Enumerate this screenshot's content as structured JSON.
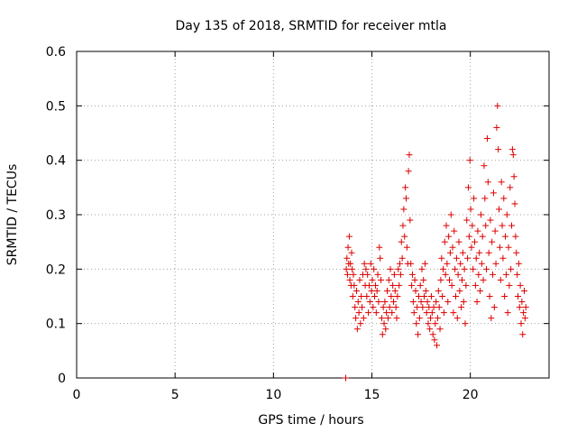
{
  "chart_data": {
    "type": "scatter",
    "title": "Day 135 of 2018, SRMTID for receiver mtla",
    "xlabel": "GPS time / hours",
    "ylabel": "SRMTID / TECUs",
    "xlim": [
      0,
      24
    ],
    "ylim": [
      0,
      0.6
    ],
    "xticks": [
      0,
      5,
      10,
      15,
      20
    ],
    "yticks": [
      0,
      0.1,
      0.2,
      0.3,
      0.4,
      0.5,
      0.6
    ],
    "xtick_labels": [
      "0",
      "5",
      "10",
      "15",
      "20"
    ],
    "ytick_labels": [
      "0",
      "0.1",
      "0.2",
      "0.3",
      "0.4",
      "0.5",
      "0.6"
    ],
    "grid": true,
    "marker": "+",
    "color": "#dd0000",
    "series": [
      {
        "name": "mtla",
        "points": [
          [
            13.67,
            0.0
          ],
          [
            13.67,
            0.0
          ],
          [
            13.7,
            0.2
          ],
          [
            13.73,
            0.22
          ],
          [
            13.76,
            0.19
          ],
          [
            13.79,
            0.24
          ],
          [
            13.82,
            0.21
          ],
          [
            13.85,
            0.26
          ],
          [
            13.88,
            0.18
          ],
          [
            13.91,
            0.21
          ],
          [
            13.94,
            0.17
          ],
          [
            13.97,
            0.23
          ],
          [
            14.0,
            0.2
          ],
          [
            14.03,
            0.15
          ],
          [
            14.06,
            0.19
          ],
          [
            14.1,
            0.17
          ],
          [
            14.14,
            0.13
          ],
          [
            14.18,
            0.11
          ],
          [
            14.22,
            0.16
          ],
          [
            14.26,
            0.09
          ],
          [
            14.3,
            0.14
          ],
          [
            14.34,
            0.12
          ],
          [
            14.38,
            0.18
          ],
          [
            14.42,
            0.1
          ],
          [
            14.46,
            0.15
          ],
          [
            14.5,
            0.13
          ],
          [
            14.54,
            0.19
          ],
          [
            14.58,
            0.11
          ],
          [
            14.62,
            0.21
          ],
          [
            14.66,
            0.17
          ],
          [
            14.7,
            0.2
          ],
          [
            14.74,
            0.15
          ],
          [
            14.78,
            0.19
          ],
          [
            14.82,
            0.12
          ],
          [
            14.86,
            0.17
          ],
          [
            14.9,
            0.14
          ],
          [
            14.94,
            0.21
          ],
          [
            14.98,
            0.16
          ],
          [
            15.02,
            0.18
          ],
          [
            15.06,
            0.13
          ],
          [
            15.1,
            0.2
          ],
          [
            15.14,
            0.15
          ],
          [
            15.18,
            0.17
          ],
          [
            15.22,
            0.12
          ],
          [
            15.26,
            0.16
          ],
          [
            15.3,
            0.19
          ],
          [
            15.34,
            0.14
          ],
          [
            15.38,
            0.24
          ],
          [
            15.42,
            0.22
          ],
          [
            15.46,
            0.18
          ],
          [
            15.5,
            0.11
          ],
          [
            15.54,
            0.08
          ],
          [
            15.58,
            0.13
          ],
          [
            15.62,
            0.1
          ],
          [
            15.66,
            0.14
          ],
          [
            15.7,
            0.09
          ],
          [
            15.74,
            0.12
          ],
          [
            15.78,
            0.16
          ],
          [
            15.82,
            0.11
          ],
          [
            15.86,
            0.18
          ],
          [
            15.9,
            0.13
          ],
          [
            15.94,
            0.2
          ],
          [
            15.98,
            0.15
          ],
          [
            16.02,
            0.12
          ],
          [
            16.06,
            0.17
          ],
          [
            16.1,
            0.14
          ],
          [
            16.14,
            0.19
          ],
          [
            16.18,
            0.16
          ],
          [
            16.22,
            0.13
          ],
          [
            16.26,
            0.11
          ],
          [
            16.3,
            0.15
          ],
          [
            16.34,
            0.2
          ],
          [
            16.38,
            0.17
          ],
          [
            16.42,
            0.21
          ],
          [
            16.46,
            0.19
          ],
          [
            16.5,
            0.25
          ],
          [
            16.54,
            0.22
          ],
          [
            16.58,
            0.28
          ],
          [
            16.62,
            0.31
          ],
          [
            16.66,
            0.26
          ],
          [
            16.7,
            0.35
          ],
          [
            16.74,
            0.33
          ],
          [
            16.78,
            0.24
          ],
          [
            16.82,
            0.21
          ],
          [
            16.86,
            0.38
          ],
          [
            16.9,
            0.41
          ],
          [
            16.94,
            0.29
          ],
          [
            16.98,
            0.21
          ],
          [
            17.02,
            0.17
          ],
          [
            17.06,
            0.19
          ],
          [
            17.1,
            0.14
          ],
          [
            17.14,
            0.12
          ],
          [
            17.18,
            0.18
          ],
          [
            17.22,
            0.16
          ],
          [
            17.26,
            0.1
          ],
          [
            17.3,
            0.13
          ],
          [
            17.34,
            0.08
          ],
          [
            17.38,
            0.15
          ],
          [
            17.42,
            0.11
          ],
          [
            17.46,
            0.17
          ],
          [
            17.5,
            0.14
          ],
          [
            17.54,
            0.2
          ],
          [
            17.58,
            0.13
          ],
          [
            17.62,
            0.18
          ],
          [
            17.66,
            0.15
          ],
          [
            17.7,
            0.21
          ],
          [
            17.74,
            0.16
          ],
          [
            17.78,
            0.12
          ],
          [
            17.82,
            0.14
          ],
          [
            17.86,
            0.1
          ],
          [
            17.9,
            0.13
          ],
          [
            17.94,
            0.09
          ],
          [
            17.98,
            0.11
          ],
          [
            18.02,
            0.15
          ],
          [
            18.06,
            0.12
          ],
          [
            18.1,
            0.08
          ],
          [
            18.14,
            0.13
          ],
          [
            18.18,
            0.07
          ],
          [
            18.22,
            0.1
          ],
          [
            18.26,
            0.14
          ],
          [
            18.3,
            0.06
          ],
          [
            18.34,
            0.11
          ],
          [
            18.38,
            0.16
          ],
          [
            18.42,
            0.13
          ],
          [
            18.46,
            0.09
          ],
          [
            18.5,
            0.18
          ],
          [
            18.54,
            0.22
          ],
          [
            18.58,
            0.15
          ],
          [
            18.62,
            0.2
          ],
          [
            18.66,
            0.12
          ],
          [
            18.7,
            0.25
          ],
          [
            18.74,
            0.19
          ],
          [
            18.78,
            0.28
          ],
          [
            18.82,
            0.21
          ],
          [
            18.86,
            0.14
          ],
          [
            18.9,
            0.26
          ],
          [
            18.94,
            0.18
          ],
          [
            18.98,
            0.23
          ],
          [
            19.02,
            0.3
          ],
          [
            19.06,
            0.17
          ],
          [
            19.1,
            0.24
          ],
          [
            19.14,
            0.12
          ],
          [
            19.18,
            0.27
          ],
          [
            19.22,
            0.2
          ],
          [
            19.26,
            0.15
          ],
          [
            19.3,
            0.22
          ],
          [
            19.34,
            0.11
          ],
          [
            19.38,
            0.19
          ],
          [
            19.42,
            0.25
          ],
          [
            19.46,
            0.16
          ],
          [
            19.5,
            0.21
          ],
          [
            19.54,
            0.13
          ],
          [
            19.58,
            0.18
          ],
          [
            19.62,
            0.23
          ],
          [
            19.66,
            0.14
          ],
          [
            19.7,
            0.2
          ],
          [
            19.74,
            0.1
          ],
          [
            19.78,
            0.17
          ],
          [
            19.82,
            0.29
          ],
          [
            19.86,
            0.22
          ],
          [
            19.9,
            0.35
          ],
          [
            19.94,
            0.26
          ],
          [
            19.98,
            0.4
          ],
          [
            20.02,
            0.31
          ],
          [
            20.06,
            0.24
          ],
          [
            20.1,
            0.28
          ],
          [
            20.14,
            0.2
          ],
          [
            20.18,
            0.33
          ],
          [
            20.22,
            0.25
          ],
          [
            20.26,
            0.17
          ],
          [
            20.3,
            0.22
          ],
          [
            20.34,
            0.14
          ],
          [
            20.38,
            0.27
          ],
          [
            20.42,
            0.19
          ],
          [
            20.46,
            0.23
          ],
          [
            20.5,
            0.16
          ],
          [
            20.54,
            0.3
          ],
          [
            20.58,
            0.21
          ],
          [
            20.62,
            0.26
          ],
          [
            20.66,
            0.18
          ],
          [
            20.7,
            0.39
          ],
          [
            20.74,
            0.33
          ],
          [
            20.78,
            0.28
          ],
          [
            20.82,
            0.2
          ],
          [
            20.86,
            0.44
          ],
          [
            20.9,
            0.36
          ],
          [
            20.94,
            0.23
          ],
          [
            20.98,
            0.15
          ],
          [
            21.02,
            0.29
          ],
          [
            21.06,
            0.11
          ],
          [
            21.1,
            0.25
          ],
          [
            21.14,
            0.19
          ],
          [
            21.18,
            0.34
          ],
          [
            21.22,
            0.13
          ],
          [
            21.26,
            0.27
          ],
          [
            21.3,
            0.21
          ],
          [
            21.34,
            0.46
          ],
          [
            21.38,
            0.5
          ],
          [
            21.42,
            0.42
          ],
          [
            21.46,
            0.31
          ],
          [
            21.5,
            0.24
          ],
          [
            21.54,
            0.18
          ],
          [
            21.58,
            0.36
          ],
          [
            21.62,
            0.28
          ],
          [
            21.66,
            0.22
          ],
          [
            21.7,
            0.33
          ],
          [
            21.74,
            0.15
          ],
          [
            21.78,
            0.26
          ],
          [
            21.82,
            0.19
          ],
          [
            21.86,
            0.3
          ],
          [
            21.9,
            0.12
          ],
          [
            21.94,
            0.24
          ],
          [
            21.98,
            0.17
          ],
          [
            22.02,
            0.35
          ],
          [
            22.06,
            0.2
          ],
          [
            22.1,
            0.28
          ],
          [
            22.14,
            0.42
          ],
          [
            22.18,
            0.41
          ],
          [
            22.22,
            0.37
          ],
          [
            22.26,
            0.32
          ],
          [
            22.3,
            0.26
          ],
          [
            22.34,
            0.23
          ],
          [
            22.38,
            0.19
          ],
          [
            22.42,
            0.15
          ],
          [
            22.46,
            0.21
          ],
          [
            22.5,
            0.13
          ],
          [
            22.54,
            0.17
          ],
          [
            22.58,
            0.1
          ],
          [
            22.62,
            0.14
          ],
          [
            22.66,
            0.08
          ],
          [
            22.7,
            0.12
          ],
          [
            22.74,
            0.16
          ],
          [
            22.78,
            0.11
          ],
          [
            22.82,
            0.13
          ]
        ]
      }
    ]
  }
}
